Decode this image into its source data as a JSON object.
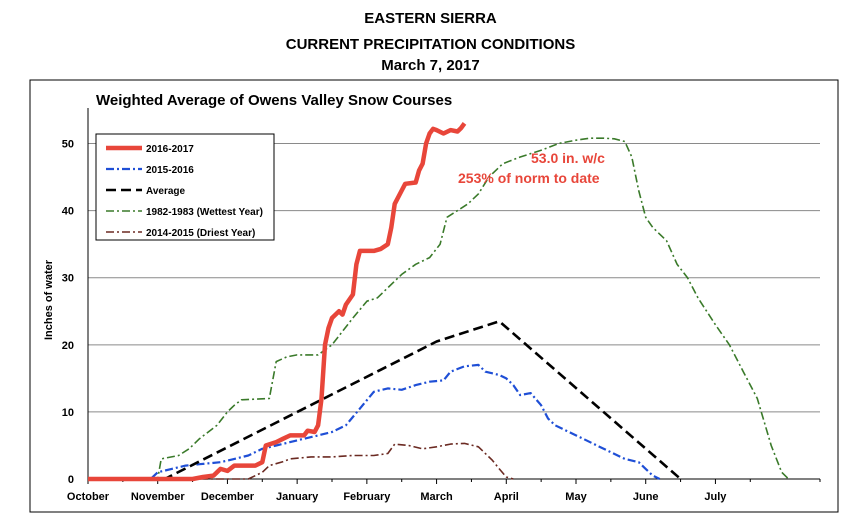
{
  "header": {
    "line1": "EASTERN SIERRA",
    "line2": "CURRENT PRECIPITATION CONDITIONS",
    "line3": "March 7, 2017"
  },
  "chart_data": {
    "type": "line",
    "title": "Weighted Average of Owens Valley Snow Courses",
    "ylabel": "Inches of water",
    "xlabel": "",
    "ylim": [
      0,
      55
    ],
    "yticks": [
      0,
      10,
      20,
      30,
      40,
      50
    ],
    "xlim": [
      0,
      10.5
    ],
    "month_labels": [
      {
        "label": "October",
        "x": 0
      },
      {
        "label": "November",
        "x": 1
      },
      {
        "label": "December",
        "x": 2
      },
      {
        "label": "January",
        "x": 3
      },
      {
        "label": "February",
        "x": 4
      },
      {
        "label": "March",
        "x": 5
      },
      {
        "label": "April",
        "x": 6
      },
      {
        "label": "May",
        "x": 7
      },
      {
        "label": "June",
        "x": 8
      },
      {
        "label": "July",
        "x": 9
      }
    ],
    "annotations": [
      "53.0  in. w/c",
      "253%  of norm to date"
    ],
    "series": [
      {
        "name": "2016-2017",
        "color": "#e8463a",
        "style": "solid-thick",
        "points": [
          [
            0,
            0
          ],
          [
            1.5,
            0
          ],
          [
            1.65,
            0.3
          ],
          [
            1.8,
            0.5
          ],
          [
            1.9,
            1.5
          ],
          [
            2.0,
            1.2
          ],
          [
            2.1,
            2.0
          ],
          [
            2.4,
            2.0
          ],
          [
            2.5,
            2.5
          ],
          [
            2.55,
            5.0
          ],
          [
            2.7,
            5.5
          ],
          [
            2.8,
            6.0
          ],
          [
            2.9,
            6.5
          ],
          [
            3.1,
            6.5
          ],
          [
            3.15,
            7.2
          ],
          [
            3.25,
            7.0
          ],
          [
            3.3,
            8.0
          ],
          [
            3.35,
            12.0
          ],
          [
            3.4,
            20.0
          ],
          [
            3.45,
            22.5
          ],
          [
            3.5,
            24.0
          ],
          [
            3.6,
            25.0
          ],
          [
            3.65,
            24.5
          ],
          [
            3.7,
            26.0
          ],
          [
            3.8,
            27.5
          ],
          [
            3.85,
            32.0
          ],
          [
            3.9,
            34.0
          ],
          [
            4.1,
            34.0
          ],
          [
            4.2,
            34.3
          ],
          [
            4.3,
            35.0
          ],
          [
            4.35,
            37.5
          ],
          [
            4.4,
            41.0
          ],
          [
            4.5,
            43.0
          ],
          [
            4.55,
            44.0
          ],
          [
            4.7,
            44.2
          ],
          [
            4.75,
            46.0
          ],
          [
            4.8,
            47.0
          ],
          [
            4.85,
            50.0
          ],
          [
            4.9,
            51.5
          ],
          [
            4.95,
            52.2
          ],
          [
            5.0,
            52.0
          ],
          [
            5.1,
            51.5
          ],
          [
            5.2,
            52.0
          ],
          [
            5.3,
            51.8
          ],
          [
            5.35,
            52.3
          ],
          [
            5.4,
            53.0
          ]
        ]
      },
      {
        "name": "2015-2016",
        "color": "#1f4fd6",
        "style": "dash-dot",
        "points": [
          [
            0,
            0
          ],
          [
            0.9,
            0
          ],
          [
            1.0,
            1.0
          ],
          [
            1.2,
            1.5
          ],
          [
            1.4,
            2.0
          ],
          [
            1.6,
            2.2
          ],
          [
            1.9,
            2.5
          ],
          [
            2.1,
            3.0
          ],
          [
            2.3,
            3.5
          ],
          [
            2.5,
            4.5
          ],
          [
            2.7,
            5.0
          ],
          [
            2.9,
            5.5
          ],
          [
            3.1,
            6.0
          ],
          [
            3.3,
            6.5
          ],
          [
            3.5,
            7.0
          ],
          [
            3.7,
            8.0
          ],
          [
            3.9,
            10.5
          ],
          [
            4.1,
            13.0
          ],
          [
            4.3,
            13.5
          ],
          [
            4.5,
            13.3
          ],
          [
            4.7,
            14.0
          ],
          [
            4.9,
            14.5
          ],
          [
            5.1,
            14.7
          ],
          [
            5.2,
            16.0
          ],
          [
            5.4,
            16.8
          ],
          [
            5.6,
            17.0
          ],
          [
            5.7,
            16.0
          ],
          [
            5.9,
            15.5
          ],
          [
            6.0,
            15.0
          ],
          [
            6.1,
            14.0
          ],
          [
            6.2,
            12.5
          ],
          [
            6.35,
            12.8
          ],
          [
            6.5,
            11.0
          ],
          [
            6.6,
            9.0
          ],
          [
            6.7,
            8.0
          ],
          [
            6.9,
            7.0
          ],
          [
            7.1,
            6.0
          ],
          [
            7.3,
            5.0
          ],
          [
            7.5,
            4.0
          ],
          [
            7.7,
            3.0
          ],
          [
            7.9,
            2.5
          ],
          [
            8.0,
            1.5
          ],
          [
            8.1,
            0.5
          ],
          [
            8.2,
            0
          ]
        ]
      },
      {
        "name": "Average",
        "color": "#000000",
        "style": "dashed",
        "points": [
          [
            0,
            0
          ],
          [
            1.1,
            0
          ],
          [
            5.0,
            20.5
          ],
          [
            5.9,
            23.5
          ],
          [
            8.5,
            0
          ]
        ]
      },
      {
        "name": "1982-1983 (Wettest Year)",
        "color": "#3a7a2a",
        "style": "dash-dot",
        "points": [
          [
            0,
            0
          ],
          [
            1.0,
            0
          ],
          [
            1.05,
            3.0
          ],
          [
            1.3,
            3.5
          ],
          [
            1.45,
            4.5
          ],
          [
            1.6,
            6.0
          ],
          [
            1.85,
            8.0
          ],
          [
            2.0,
            10.0
          ],
          [
            2.1,
            11.0
          ],
          [
            2.2,
            11.8
          ],
          [
            2.6,
            12.0
          ],
          [
            2.7,
            17.5
          ],
          [
            2.85,
            18.2
          ],
          [
            3.0,
            18.5
          ],
          [
            3.3,
            18.5
          ],
          [
            3.5,
            20.0
          ],
          [
            3.8,
            24.0
          ],
          [
            4.0,
            26.5
          ],
          [
            4.15,
            27.0
          ],
          [
            4.3,
            28.5
          ],
          [
            4.5,
            30.5
          ],
          [
            4.7,
            32.0
          ],
          [
            4.9,
            33.0
          ],
          [
            5.05,
            35.0
          ],
          [
            5.15,
            39.0
          ],
          [
            5.3,
            40.0
          ],
          [
            5.45,
            41.0
          ],
          [
            5.6,
            42.5
          ],
          [
            5.75,
            45.0
          ],
          [
            5.95,
            47.0
          ],
          [
            6.2,
            48.0
          ],
          [
            6.5,
            49.0
          ],
          [
            6.75,
            50.0
          ],
          [
            7.0,
            50.5
          ],
          [
            7.2,
            50.8
          ],
          [
            7.4,
            50.8
          ],
          [
            7.55,
            50.7
          ],
          [
            7.7,
            50.3
          ],
          [
            7.8,
            48.0
          ],
          [
            7.9,
            43.0
          ],
          [
            8.0,
            39.0
          ],
          [
            8.1,
            37.5
          ],
          [
            8.3,
            35.5
          ],
          [
            8.45,
            32.0
          ],
          [
            8.6,
            30.0
          ],
          [
            8.75,
            27.0
          ],
          [
            9.0,
            23.0
          ],
          [
            9.2,
            20.0
          ],
          [
            9.4,
            16.0
          ],
          [
            9.6,
            12.0
          ],
          [
            9.8,
            5.0
          ],
          [
            9.95,
            1.0
          ],
          [
            10.05,
            0
          ]
        ]
      },
      {
        "name": "2014-2015 (Driest Year)",
        "color": "#6b2a22",
        "style": "dash-dot",
        "points": [
          [
            0,
            0
          ],
          [
            2.3,
            0
          ],
          [
            2.5,
            1.0
          ],
          [
            2.6,
            2.0
          ],
          [
            2.8,
            2.6
          ],
          [
            2.9,
            3.0
          ],
          [
            3.2,
            3.3
          ],
          [
            3.5,
            3.3
          ],
          [
            3.8,
            3.5
          ],
          [
            4.1,
            3.5
          ],
          [
            4.3,
            3.8
          ],
          [
            4.4,
            5.2
          ],
          [
            4.6,
            5.0
          ],
          [
            4.8,
            4.5
          ],
          [
            5.0,
            4.8
          ],
          [
            5.2,
            5.2
          ],
          [
            5.4,
            5.3
          ],
          [
            5.6,
            4.8
          ],
          [
            5.8,
            2.8
          ],
          [
            5.9,
            1.5
          ],
          [
            6.0,
            0.3
          ],
          [
            6.1,
            0
          ]
        ]
      }
    ]
  }
}
